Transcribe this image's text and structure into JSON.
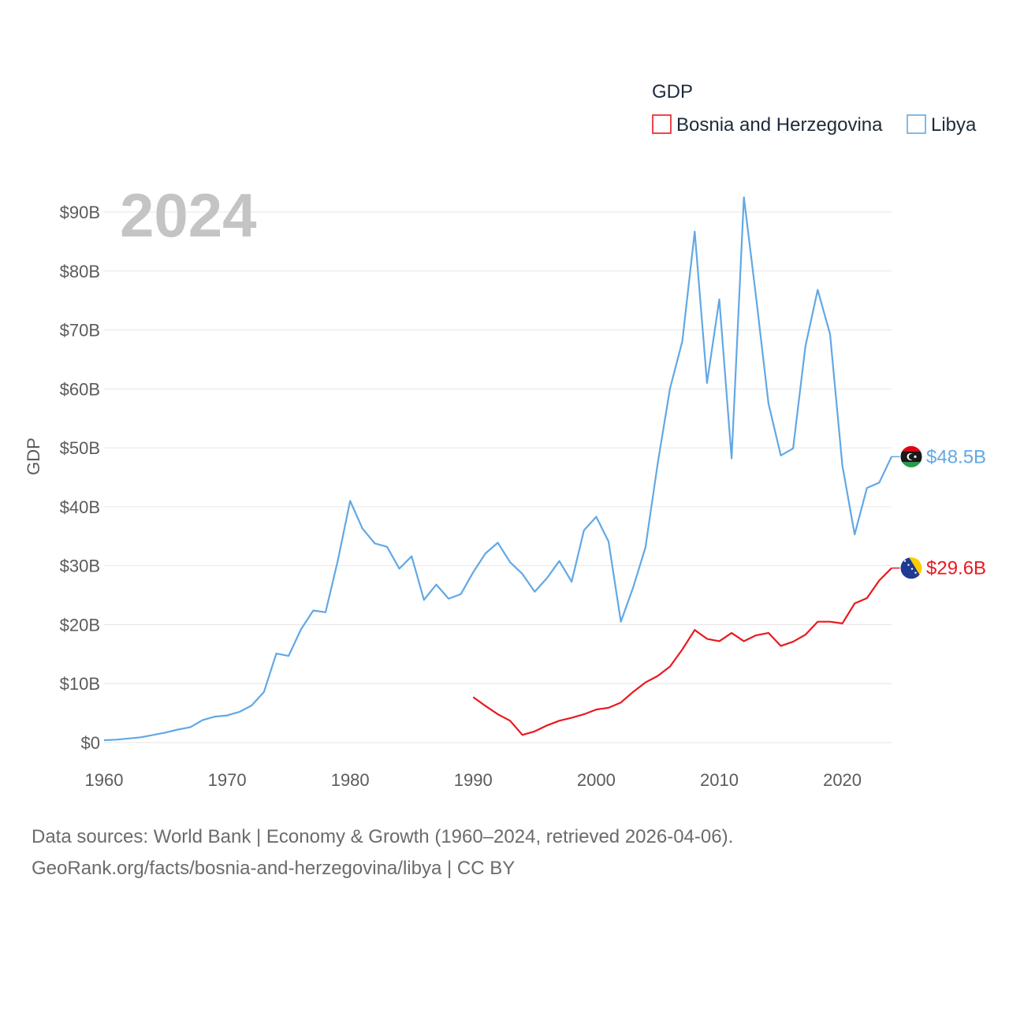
{
  "chart_data": {
    "type": "line",
    "title": "",
    "year_watermark": "2024",
    "ylabel": "GDP",
    "xlabel": "",
    "xlim": [
      1960,
      2024
    ],
    "ylim": [
      0,
      90
    ],
    "y_ticks": [
      {
        "value": 0,
        "label": "$0"
      },
      {
        "value": 10,
        "label": "$10B"
      },
      {
        "value": 20,
        "label": "$20B"
      },
      {
        "value": 30,
        "label": "$30B"
      },
      {
        "value": 40,
        "label": "$40B"
      },
      {
        "value": 50,
        "label": "$50B"
      },
      {
        "value": 60,
        "label": "$60B"
      },
      {
        "value": 70,
        "label": "$70B"
      },
      {
        "value": 80,
        "label": "$80B"
      },
      {
        "value": 90,
        "label": "$90B"
      }
    ],
    "x_ticks": [
      {
        "value": 1960,
        "label": "1960"
      },
      {
        "value": 1970,
        "label": "1970"
      },
      {
        "value": 1980,
        "label": "1980"
      },
      {
        "value": 1990,
        "label": "1990"
      },
      {
        "value": 2000,
        "label": "2000"
      },
      {
        "value": 2010,
        "label": "2010"
      },
      {
        "value": 2020,
        "label": "2020"
      }
    ],
    "legend": {
      "title": "GDP",
      "position": "top-right"
    },
    "series": [
      {
        "name": "Bosnia and Herzegovina",
        "color": "#e8191f",
        "end_label": "$29.6B",
        "flag": "bosnia-flag-icon",
        "x": [
          1990,
          1991,
          1992,
          1993,
          1994,
          1995,
          1996,
          1997,
          1998,
          1999,
          2000,
          2001,
          2002,
          2003,
          2004,
          2005,
          2006,
          2007,
          2008,
          2009,
          2010,
          2011,
          2012,
          2013,
          2014,
          2015,
          2016,
          2017,
          2018,
          2019,
          2020,
          2021,
          2022,
          2023,
          2024
        ],
        "values": [
          7.7,
          6.2,
          4.8,
          3.7,
          1.3,
          1.9,
          2.9,
          3.7,
          4.2,
          4.8,
          5.6,
          5.9,
          6.8,
          8.6,
          10.2,
          11.3,
          12.9,
          15.8,
          19.1,
          17.6,
          17.2,
          18.6,
          17.2,
          18.2,
          18.6,
          16.4,
          17.1,
          18.3,
          20.5,
          20.5,
          20.2,
          23.6,
          24.5,
          27.5,
          29.6
        ]
      },
      {
        "name": "Libya",
        "color": "#62a8e5",
        "end_label": "$48.5B",
        "flag": "libya-flag-icon",
        "x": [
          1960,
          1961,
          1962,
          1963,
          1964,
          1965,
          1966,
          1967,
          1968,
          1969,
          1970,
          1971,
          1972,
          1973,
          1974,
          1975,
          1976,
          1977,
          1978,
          1979,
          1980,
          1981,
          1982,
          1983,
          1984,
          1985,
          1986,
          1987,
          1988,
          1989,
          1990,
          1991,
          1992,
          1993,
          1994,
          1995,
          1996,
          1997,
          1998,
          1999,
          2000,
          2001,
          2002,
          2003,
          2004,
          2005,
          2006,
          2007,
          2008,
          2009,
          2010,
          2011,
          2012,
          2013,
          2014,
          2015,
          2016,
          2017,
          2018,
          2019,
          2020,
          2021,
          2022,
          2023,
          2024
        ],
        "values": [
          0.4,
          0.5,
          0.7,
          0.9,
          1.3,
          1.7,
          2.2,
          2.6,
          3.8,
          4.4,
          4.6,
          5.2,
          6.3,
          8.6,
          15.1,
          14.7,
          19.2,
          22.4,
          22.1,
          30.9,
          41.0,
          36.3,
          33.8,
          33.2,
          29.5,
          31.6,
          24.2,
          26.8,
          24.4,
          25.2,
          28.9,
          32.1,
          33.9,
          30.6,
          28.6,
          25.6,
          27.9,
          30.8,
          27.3,
          36.0,
          38.3,
          34.1,
          20.5,
          26.3,
          33.1,
          47.4,
          60.1,
          68.1,
          86.7,
          61.0,
          75.2,
          48.2,
          92.5,
          75.4,
          57.5,
          48.7,
          49.9,
          67.2,
          76.8,
          69.3,
          47.0,
          35.3,
          43.2,
          44.1,
          48.5
        ]
      }
    ]
  },
  "footer": {
    "line1": "Data sources: World Bank | Economy & Growth (1960–2024, retrieved 2026-04-06).",
    "line2": "GeoRank.org/facts/bosnia-and-herzegovina/libya | CC BY"
  }
}
